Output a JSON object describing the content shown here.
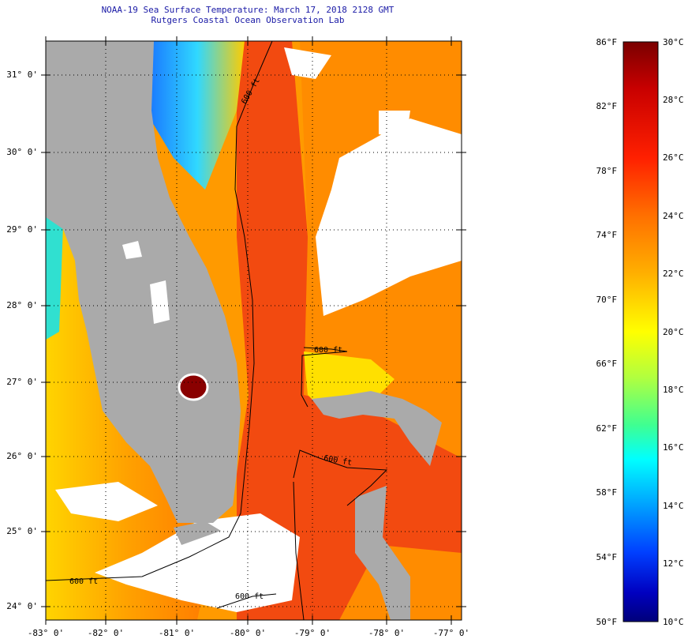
{
  "title": {
    "line1": "NOAA-19 Sea Surface Temperature:  March 17, 2018 2128 GMT",
    "line2": "Rutgers Coastal Ocean Observation Lab"
  },
  "latitude_labels": [
    "31° 0'",
    "30° 0'",
    "29° 0'",
    "28° 0'",
    "27° 0'",
    "26° 0'",
    "25° 0'",
    "24° 0'"
  ],
  "longitude_labels": [
    "-83° 0'",
    "-82° 0'",
    "-81° 0'",
    "-80° 0'",
    "-79° 0'",
    "-78° 0'",
    "-77° 0'"
  ],
  "colorbar": {
    "fahrenheit_labels": [
      "86°F",
      "82°F",
      "78°F",
      "74°F",
      "70°F",
      "66°F",
      "62°F",
      "58°F",
      "54°F",
      "50°F"
    ],
    "celsius_labels": [
      "30°C",
      "28°C",
      "26°C",
      "24°C",
      "22°C",
      "20°C",
      "18°C",
      "16°C",
      "14°C",
      "12°C",
      "10°C"
    ],
    "colors": [
      "#7a0000",
      "#c80000",
      "#ff2000",
      "#ff7000",
      "#ffb000",
      "#ffff00",
      "#b0ff40",
      "#40ff90",
      "#00ffff",
      "#00a0ff",
      "#0040ff",
      "#0000c0",
      "#00007a"
    ]
  },
  "contour_labels": [
    "600 ft",
    "600 ft",
    "600 ft",
    "600 ft",
    "600 ft"
  ],
  "map_colors": {
    "land": "#aaaaaa",
    "cloud": "#ffffff",
    "gulf_stream": "#f24a10",
    "warm_ocean": "#ff8a00"
  }
}
